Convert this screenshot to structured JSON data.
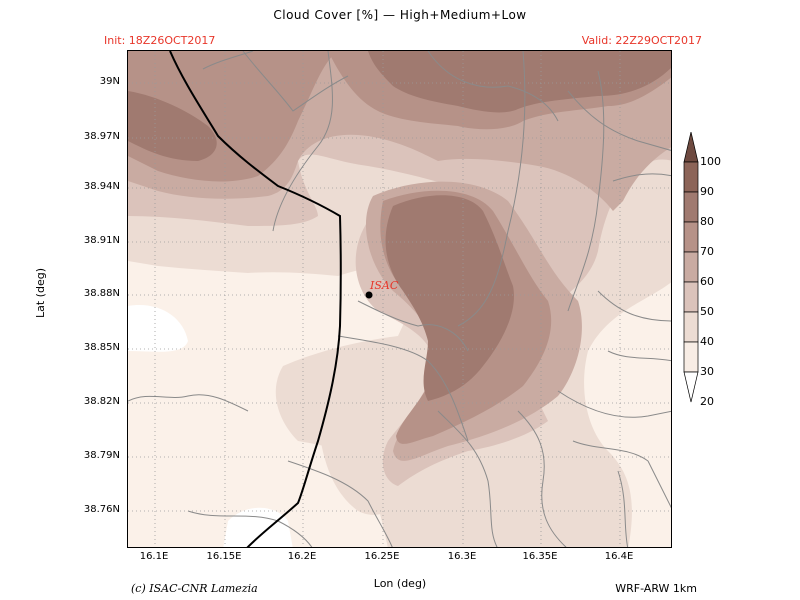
{
  "header": {
    "title": "Cloud  Cover [%] — High+Medium+Low",
    "init": "Init: 18Z26OCT2017",
    "valid": "Valid: 22Z29OCT2017"
  },
  "axes": {
    "xlabel": "Lon (deg)",
    "ylabel": "Lat (deg)",
    "xticks": [
      "16.1E",
      "16.15E",
      "16.2E",
      "16.25E",
      "16.3E",
      "16.35E",
      "16.4E"
    ],
    "yticks": [
      "39N",
      "38.97N",
      "38.94N",
      "38.91N",
      "38.88N",
      "38.85N",
      "38.82N",
      "38.79N",
      "38.76N"
    ]
  },
  "colorbar": {
    "levels": [
      "100",
      "90",
      "80",
      "70",
      "60",
      "50",
      "40",
      "30",
      "20"
    ],
    "colors": [
      "#6e4a40",
      "#8c6458",
      "#a07a70",
      "#b69288",
      "#c9aba2",
      "#dbc3bb",
      "#ecdcd3",
      "#f8ede5",
      "#ffffff"
    ]
  },
  "marker": {
    "label": "ISAC"
  },
  "footer": {
    "credit": "(c) ISAC-CNR Lamezia",
    "model": "WRF-ARW 1km"
  }
}
